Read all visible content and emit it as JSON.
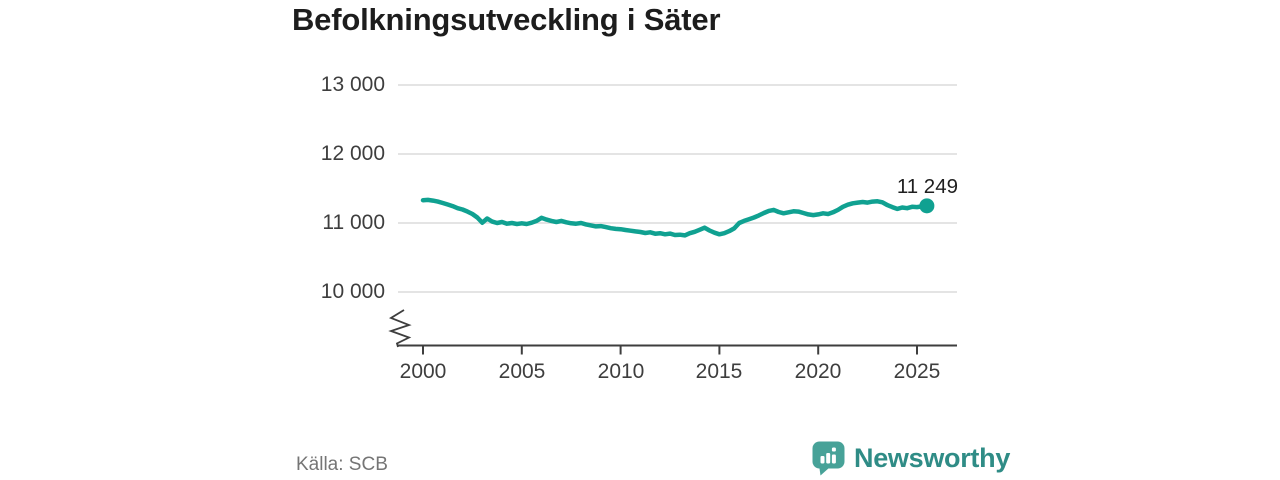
{
  "chart_data": {
    "type": "line",
    "title": "Befolkningsutveckling i Säter",
    "xlabel": "",
    "ylabel": "",
    "grid": "horizontal",
    "legend": "none",
    "axis_break_bottom_left": true,
    "x_tick_labels": [
      "2000",
      "2005",
      "2010",
      "2015",
      "2020",
      "2025"
    ],
    "x_tick_values": [
      2000,
      2005,
      2010,
      2015,
      2020,
      2025
    ],
    "y_tick_labels": [
      "13 000",
      "12 000",
      "11 000",
      "10 000"
    ],
    "y_tick_values": [
      13000,
      12000,
      11000,
      10000
    ],
    "xlim": [
      1999.7,
      2027
    ],
    "ylim": [
      9600,
      13400
    ],
    "series": [
      {
        "name": "Befolkning i Säter",
        "x_start": 2000,
        "x_step": 0.25,
        "values": [
          11330,
          11335,
          11325,
          11310,
          11290,
          11268,
          11245,
          11215,
          11195,
          11165,
          11130,
          11080,
          11005,
          11065,
          11020,
          11000,
          11015,
          10990,
          11000,
          10985,
          10995,
          10985,
          11005,
          11030,
          11075,
          11050,
          11030,
          11015,
          11030,
          11010,
          10995,
          10990,
          11000,
          10980,
          10965,
          10950,
          10955,
          10940,
          10925,
          10915,
          10910,
          10898,
          10888,
          10878,
          10870,
          10855,
          10865,
          10845,
          10852,
          10836,
          10846,
          10826,
          10830,
          10820,
          10852,
          10872,
          10902,
          10932,
          10892,
          10860,
          10836,
          10852,
          10882,
          10922,
          11000,
          11030,
          11055,
          11080,
          11110,
          11145,
          11175,
          11190,
          11160,
          11140,
          11155,
          11170,
          11165,
          11145,
          11125,
          11115,
          11125,
          11140,
          11130,
          11155,
          11190,
          11235,
          11265,
          11285,
          11295,
          11305,
          11295,
          11310,
          11315,
          11300,
          11260,
          11230,
          11205,
          11225,
          11215,
          11235,
          11230,
          11240,
          11249
        ]
      }
    ],
    "end_point": {
      "label": "11 249",
      "value": 11249
    }
  },
  "footer": {
    "source": "Källa: SCB",
    "brand": "Newsworthy"
  },
  "colors": {
    "line": "#10a191",
    "grid": "#dcdcdc",
    "axis": "#3e3e3e",
    "title": "#1d1d1d",
    "brand_icon": "#47a298",
    "brand_text": "#2f8c86"
  }
}
